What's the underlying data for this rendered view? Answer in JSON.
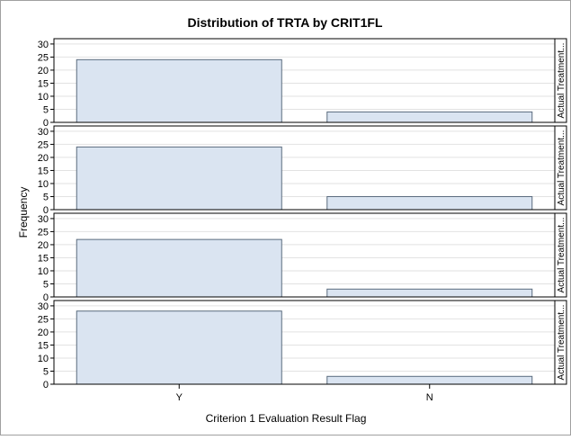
{
  "chart_data": {
    "type": "bar",
    "title": "Distribution of TRTA by CRIT1FL",
    "xlabel": "Criterion 1 Evaluation Result Flag",
    "ylabel": "Frequency",
    "categories": [
      "Y",
      "N"
    ],
    "ylim": [
      0,
      31
    ],
    "yticks": [
      0,
      5,
      10,
      15,
      20,
      25,
      30
    ],
    "grid": true,
    "panels": [
      {
        "strip_label": "Actual Treatment...",
        "values": [
          24,
          4
        ]
      },
      {
        "strip_label": "Actual Treatment...",
        "values": [
          24,
          5
        ]
      },
      {
        "strip_label": "Actual Treatment...",
        "values": [
          22,
          3
        ]
      },
      {
        "strip_label": "Actual Treatment...",
        "values": [
          28,
          3
        ]
      }
    ]
  },
  "colors": {
    "bar_fill": "#dae4f1",
    "bar_stroke": "#5a6b7e",
    "grid": "#e2e2e2",
    "axis": "#000000",
    "frame": "#a0a0a0"
  }
}
